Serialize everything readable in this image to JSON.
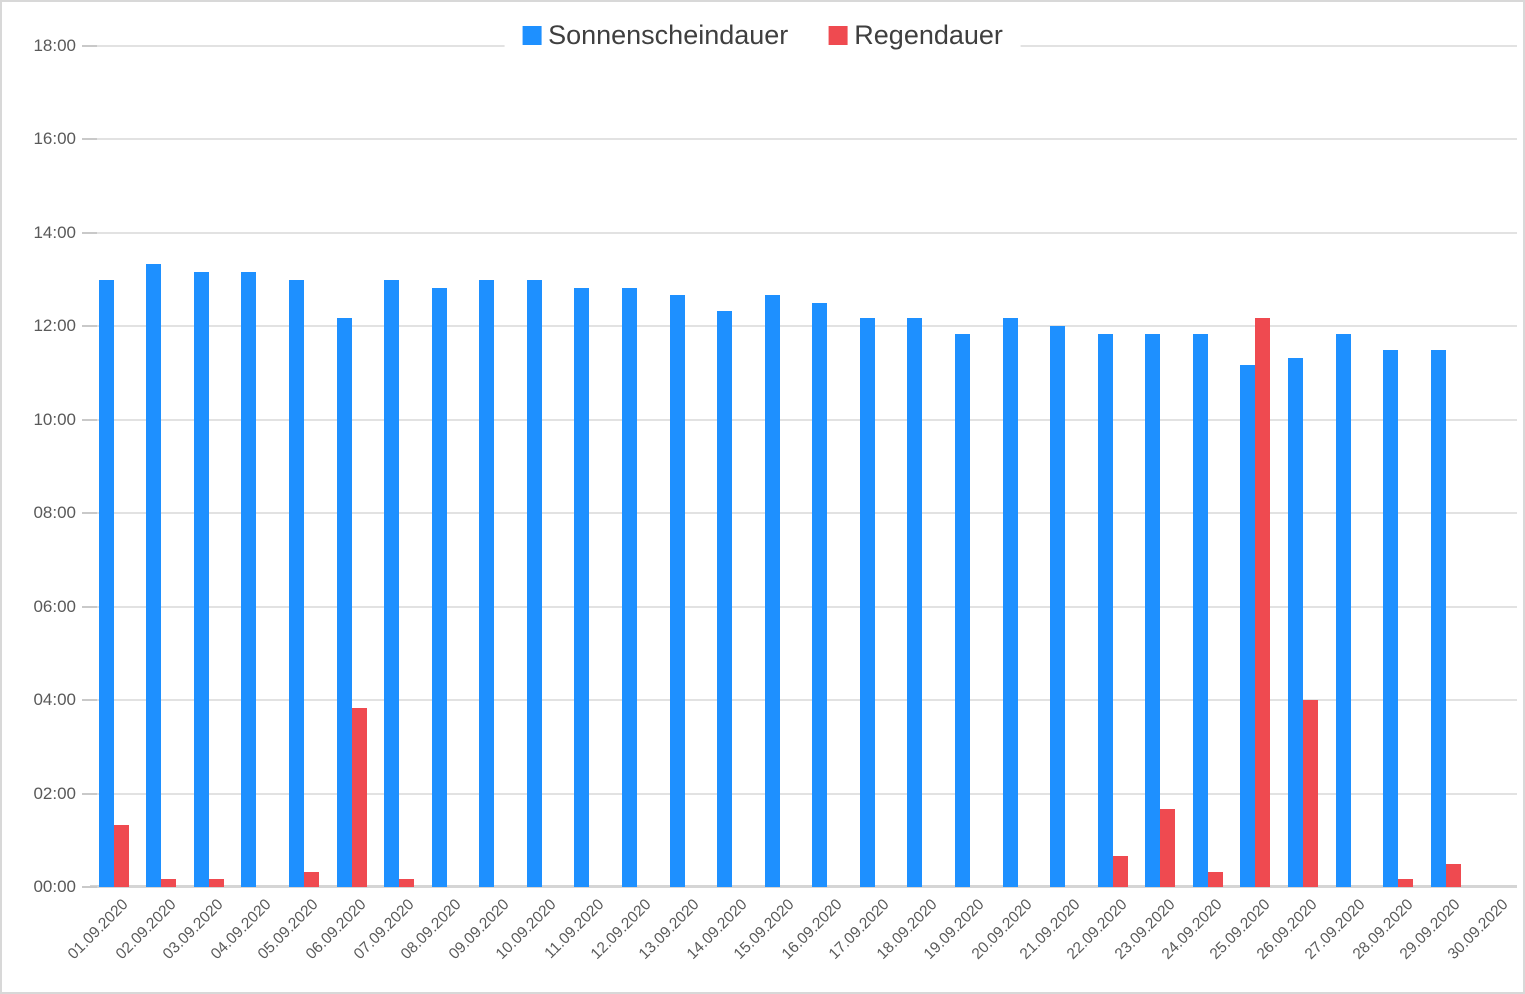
{
  "chart_data": {
    "type": "bar",
    "title": "",
    "xlabel": "",
    "ylabel": "",
    "y_ticks": [
      "00:00",
      "02:00",
      "04:00",
      "06:00",
      "08:00",
      "10:00",
      "12:00",
      "14:00",
      "16:00",
      "18:00"
    ],
    "ylim_hours": [
      0,
      18
    ],
    "grid": true,
    "legend_position": "top-center",
    "categories": [
      "01.09.2020",
      "02.09.2020",
      "03.09.2020",
      "04.09.2020",
      "05.09.2020",
      "06.09.2020",
      "07.09.2020",
      "08.09.2020",
      "09.09.2020",
      "10.09.2020",
      "11.09.2020",
      "12.09.2020",
      "13.09.2020",
      "14.09.2020",
      "15.09.2020",
      "16.09.2020",
      "17.09.2020",
      "18.09.2020",
      "19.09.2020",
      "20.09.2020",
      "21.09.2020",
      "22.09.2020",
      "23.09.2020",
      "24.09.2020",
      "25.09.2020",
      "26.09.2020",
      "27.09.2020",
      "28.09.2020",
      "29.09.2020",
      "30.09.2020"
    ],
    "series": [
      {
        "name": "Sonnenscheindauer",
        "color": "#1e90ff",
        "values_hours": [
          13.0,
          13.33,
          13.17,
          13.17,
          13.0,
          12.17,
          13.0,
          12.83,
          13.0,
          13.0,
          12.83,
          12.83,
          12.67,
          12.33,
          12.67,
          12.5,
          12.17,
          12.17,
          11.83,
          12.17,
          12.0,
          11.83,
          11.83,
          11.83,
          11.17,
          11.33,
          11.83,
          11.5,
          11.5,
          0
        ],
        "values_hhmm": [
          "13:00",
          "13:20",
          "13:10",
          "13:10",
          "13:00",
          "12:10",
          "13:00",
          "12:50",
          "13:00",
          "13:00",
          "12:50",
          "12:50",
          "12:40",
          "12:20",
          "12:40",
          "12:30",
          "12:10",
          "12:10",
          "11:50",
          "12:10",
          "12:00",
          "11:50",
          "11:50",
          "11:50",
          "11:10",
          "11:20",
          "11:50",
          "11:30",
          "11:30",
          "00:00"
        ]
      },
      {
        "name": "Regendauer",
        "color": "#ef4a50",
        "values_hours": [
          1.33,
          0.17,
          0.17,
          0,
          0.33,
          3.83,
          0.17,
          0,
          0,
          0,
          0,
          0,
          0,
          0,
          0,
          0,
          0,
          0,
          0,
          0,
          0,
          0.67,
          1.67,
          0.33,
          12.17,
          4.0,
          0,
          0.17,
          0.5,
          0
        ],
        "values_hhmm": [
          "01:20",
          "00:10",
          "00:10",
          "00:00",
          "00:20",
          "03:50",
          "00:10",
          "00:00",
          "00:00",
          "00:00",
          "00:00",
          "00:00",
          "00:00",
          "00:00",
          "00:00",
          "00:00",
          "00:00",
          "00:00",
          "00:00",
          "00:00",
          "00:00",
          "00:40",
          "01:40",
          "00:20",
          "12:10",
          "04:00",
          "00:00",
          "00:10",
          "00:30",
          "00:00"
        ]
      }
    ]
  },
  "colors": {
    "gridline": "#e2e2e2",
    "baseline": "#d5d5d5",
    "tickmark": "#c9c9c9",
    "axis_text": "#595959",
    "legend_text": "#3f3f3f",
    "border": "#d8d8d8",
    "background": "#ffffff"
  }
}
